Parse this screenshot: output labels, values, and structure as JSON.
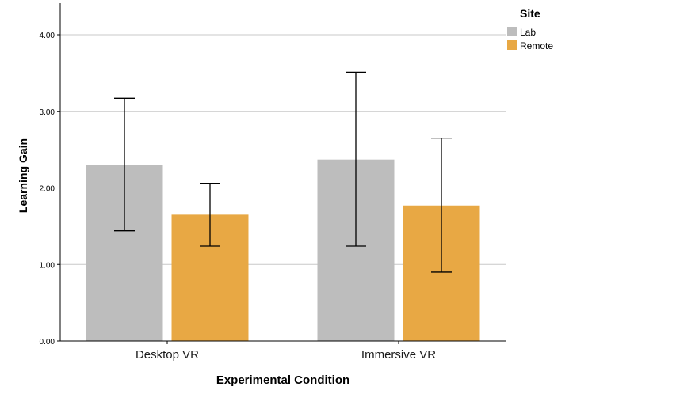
{
  "chart_data": {
    "type": "bar",
    "categories": [
      "Desktop VR",
      "Immersive VR"
    ],
    "xlabel": "Experimental Condition",
    "ylabel": "Learning Gain",
    "ylim": [
      0,
      4.4
    ],
    "yticks": [
      "0.00",
      "1.00",
      "2.00",
      "3.00",
      "4.00"
    ],
    "grid": true,
    "legend": {
      "title": "Site",
      "placement": "top-right-outside"
    },
    "series": [
      {
        "name": "Lab",
        "color": "#bdbdbd",
        "values": [
          2.3,
          2.37
        ],
        "error_low": [
          1.44,
          1.24
        ],
        "error_high": [
          3.17,
          3.51
        ]
      },
      {
        "name": "Remote",
        "color": "#e8a844",
        "values": [
          1.65,
          1.77
        ],
        "error_low": [
          1.24,
          0.9
        ],
        "error_high": [
          2.06,
          2.65
        ]
      }
    ]
  }
}
